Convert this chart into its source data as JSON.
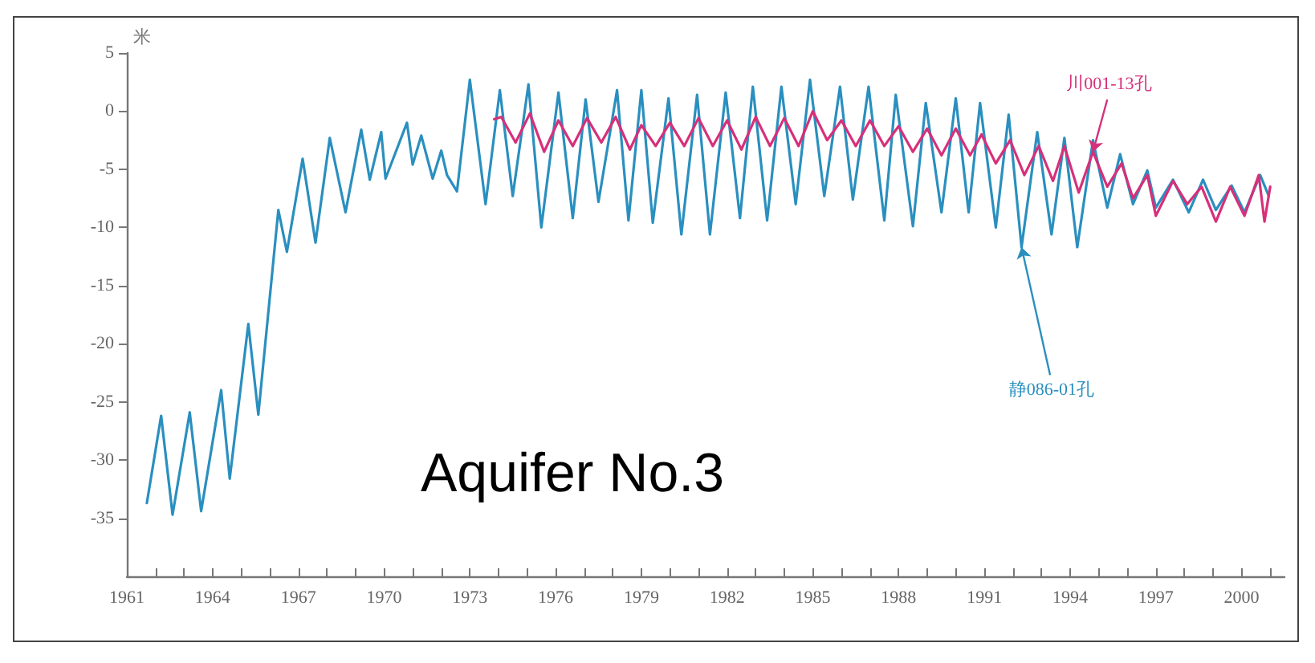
{
  "chart_data": {
    "type": "line",
    "title": "Aquifer No.3",
    "ylabel": "米",
    "xlim": [
      1961,
      2001.5
    ],
    "xticks": [
      1961,
      {
        "value": 1962,
        "label": null
      },
      {
        "value": 1963,
        "label": null
      },
      1964,
      {
        "value": 1965,
        "label": null
      },
      {
        "value": 1966,
        "label": null
      },
      1967,
      {
        "value": 1968,
        "label": null
      },
      {
        "value": 1969,
        "label": null
      },
      1970,
      {
        "value": 1971,
        "label": null
      },
      {
        "value": 1972,
        "label": null
      },
      1973,
      {
        "value": 1974,
        "label": null
      },
      {
        "value": 1975,
        "label": null
      },
      1976,
      {
        "value": 1977,
        "label": null
      },
      {
        "value": 1978,
        "label": null
      },
      1979,
      {
        "value": 1980,
        "label": null
      },
      {
        "value": 1981,
        "label": null
      },
      1982,
      {
        "value": 1983,
        "label": null
      },
      {
        "value": 1984,
        "label": null
      },
      1985,
      {
        "value": 1986,
        "label": null
      },
      {
        "value": 1987,
        "label": null
      },
      1988,
      {
        "value": 1989,
        "label": null
      },
      {
        "value": 1990,
        "label": null
      },
      1991,
      {
        "value": 1992,
        "label": null
      },
      {
        "value": 1993,
        "label": null
      },
      1994,
      {
        "value": 1995,
        "label": null
      },
      {
        "value": 1996,
        "label": null
      },
      1997,
      {
        "value": 1998,
        "label": null
      },
      {
        "value": 1999,
        "label": null
      },
      2000,
      {
        "value": 2001,
        "label": null
      }
    ],
    "ylim": [
      -40,
      5
    ],
    "yticks": [
      -35,
      -30,
      -25,
      -20,
      -15,
      -10,
      -5,
      0,
      5
    ],
    "grid": false,
    "legend": false,
    "marker": "none",
    "line_style": "solid",
    "series": [
      {
        "name": "静086-01孔",
        "color": "#2a8fbf",
        "x": [
          1961.7,
          1962.2,
          1962.6,
          1963.2,
          1963.6,
          1964.3,
          1964.6,
          1965.25,
          1965.6,
          1966.3,
          1966.6,
          1967.15,
          1967.6,
          1968.1,
          1968.65,
          1969.2,
          1969.5,
          1969.9,
          1970.05,
          1970.8,
          1971.0,
          1971.3,
          1971.7,
          1972.0,
          1972.2,
          1972.55,
          1973.0,
          1973.55,
          1974.05,
          1974.5,
          1975.05,
          1975.5,
          1976.1,
          1976.6,
          1977.05,
          1977.5,
          1978.15,
          1978.55,
          1979.0,
          1979.4,
          1979.95,
          1980.4,
          1980.95,
          1981.4,
          1981.95,
          1982.45,
          1982.9,
          1983.4,
          1983.9,
          1984.4,
          1984.9,
          1985.4,
          1985.95,
          1986.4,
          1986.95,
          1987.5,
          1987.9,
          1988.5,
          1988.95,
          1989.5,
          1990.0,
          1990.45,
          1990.85,
          1991.4,
          1991.85,
          1992.3,
          1992.85,
          1993.35,
          1993.8,
          1994.25,
          1994.8,
          1995.3,
          1995.75,
          1996.2,
          1996.7,
          1997.0,
          1997.6,
          1998.15,
          1998.65,
          1999.1,
          1999.65,
          2000.1,
          2000.65,
          2000.95
        ],
        "values": [
          -33.7,
          -26.2,
          -34.7,
          -25.9,
          -34.4,
          -24,
          -31.6,
          -18.3,
          -26.1,
          -8.5,
          -12.1,
          -4.1,
          -11.3,
          -2.3,
          -8.7,
          -1.6,
          -5.9,
          -1.8,
          -5.8,
          -1,
          -4.6,
          -2.1,
          -5.8,
          -3.4,
          -5.5,
          -6.9,
          2.7,
          -8,
          1.8,
          -7.3,
          2.3,
          -10,
          1.6,
          -9.2,
          1,
          -7.8,
          1.8,
          -9.4,
          1.8,
          -9.6,
          1.1,
          -10.6,
          1.4,
          -10.6,
          1.6,
          -9.2,
          2.1,
          -9.4,
          2.1,
          -8,
          2.7,
          -7.3,
          2.1,
          -7.6,
          2.1,
          -9.4,
          1.4,
          -9.9,
          0.7,
          -8.7,
          1.1,
          -8.7,
          0.7,
          -10,
          -0.3,
          -11.7,
          -1.8,
          -10.6,
          -2.3,
          -11.7,
          -2.5,
          -8.3,
          -3.7,
          -8,
          -5.1,
          -8.3,
          -5.9,
          -8.7,
          -5.9,
          -8.5,
          -6.4,
          -8.7,
          -5.5,
          -7.3
        ]
      },
      {
        "name": "川001-13孔",
        "color": "#d6307a",
        "x": [
          1973.85,
          1974.1,
          1974.6,
          1975.1,
          1975.6,
          1976.1,
          1976.6,
          1977.1,
          1977.6,
          1978.1,
          1978.6,
          1979.0,
          1979.5,
          1980.0,
          1980.5,
          1981.0,
          1981.5,
          1982.0,
          1982.5,
          1983.0,
          1983.5,
          1984.0,
          1984.5,
          1985.0,
          1985.5,
          1986.0,
          1986.5,
          1987.0,
          1987.5,
          1988.0,
          1988.5,
          1989.0,
          1989.5,
          1990.0,
          1990.5,
          1990.9,
          1991.4,
          1991.9,
          1992.4,
          1992.9,
          1993.4,
          1993.8,
          1994.3,
          1994.8,
          1995.3,
          1995.8,
          1996.2,
          1996.7,
          1997.0,
          1997.6,
          1998.1,
          1998.6,
          1999.1,
          1999.6,
          2000.1,
          2000.6,
          2000.8,
          2001.0
        ],
        "values": [
          -0.7,
          -0.5,
          -2.7,
          -0.2,
          -3.5,
          -0.8,
          -3,
          -0.6,
          -2.7,
          -0.5,
          -3.3,
          -1.2,
          -3,
          -1,
          -3,
          -0.6,
          -3,
          -0.8,
          -3.3,
          -0.5,
          -3,
          -0.6,
          -3,
          0,
          -2.5,
          -0.8,
          -3,
          -0.8,
          -3,
          -1.3,
          -3.5,
          -1.5,
          -3.8,
          -1.5,
          -3.8,
          -2,
          -4.5,
          -2.5,
          -5.5,
          -3,
          -6,
          -3,
          -7,
          -3.5,
          -6.5,
          -4.5,
          -7.5,
          -5.5,
          -9,
          -6,
          -8,
          -6.5,
          -9.5,
          -6.5,
          -9,
          -5.5,
          -9.5,
          -6.5
        ]
      }
    ]
  }
}
